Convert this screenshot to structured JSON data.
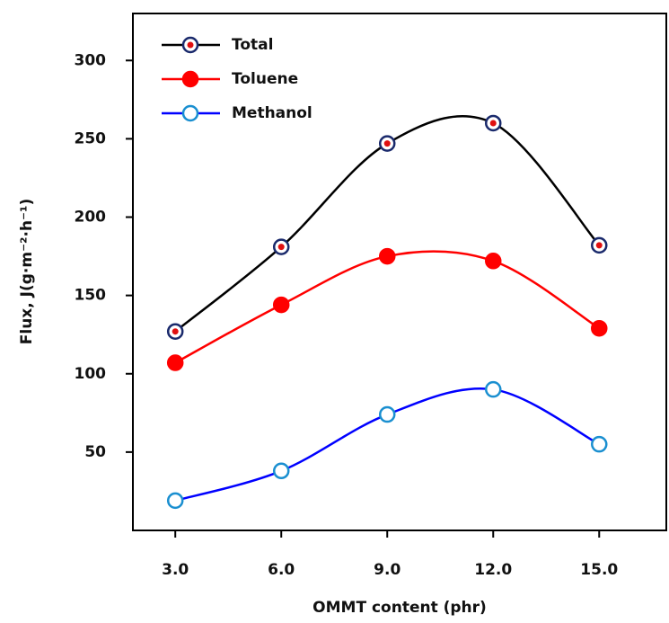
{
  "chart_data": {
    "type": "line",
    "smooth": true,
    "x_label": "OMMT content (phr)",
    "y_label": "Flux, J(g·m⁻²·h⁻¹)",
    "x": [
      3,
      6,
      9,
      12,
      15
    ],
    "series": [
      {
        "name": "Total",
        "color": "#000000",
        "marker_edge": "#1a2a6c",
        "marker_face": "#ffffff",
        "marker_dot": "#e01010",
        "values": [
          127,
          181,
          247,
          260,
          182
        ]
      },
      {
        "name": "Toluene",
        "color": "#ff0000",
        "marker_edge": "#ff0000",
        "marker_face": "#ff0000",
        "values": [
          107,
          144,
          175,
          172,
          129
        ]
      },
      {
        "name": "Methanol",
        "color": "#0000ff",
        "marker_edge": "#1a8fd0",
        "marker_face": "#ffffff",
        "values": [
          19,
          38,
          74,
          90,
          55
        ]
      }
    ],
    "xlim": [
      1.8,
      16.9
    ],
    "ylim": [
      0,
      330
    ],
    "xticks": [
      {
        "value": 3,
        "label": "3.0"
      },
      {
        "value": 6,
        "label": "6.0"
      },
      {
        "value": 9,
        "label": "9.0"
      },
      {
        "value": 12,
        "label": "12.0"
      },
      {
        "value": 15,
        "label": "15.0"
      }
    ],
    "yticks": [
      50,
      100,
      150,
      200,
      250,
      300
    ],
    "legend": "upper-left"
  }
}
